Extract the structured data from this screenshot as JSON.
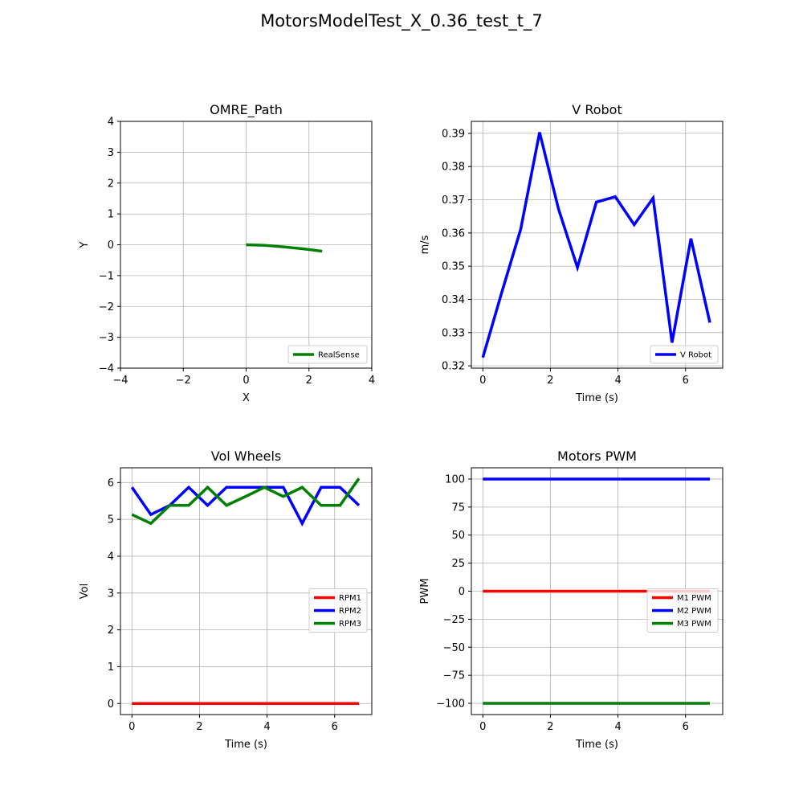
{
  "figure": {
    "suptitle": "MotorsModelTest_X_0.36_test_t_7"
  },
  "colors": {
    "red": "#ff0000",
    "blue": "#0000ff",
    "green": "#008000",
    "grid": "#b0b0b0"
  },
  "chart_data": [
    {
      "type": "line",
      "title": "OMRE_Path",
      "xlabel": "X",
      "ylabel": "Y",
      "xlim": [
        -4,
        4
      ],
      "ylim": [
        -4,
        4
      ],
      "xticks": [
        -4,
        -2,
        0,
        2,
        4
      ],
      "yticks": [
        -4,
        -3,
        -2,
        -1,
        0,
        1,
        2,
        3,
        4
      ],
      "grid": true,
      "legend": "lower-right",
      "series": [
        {
          "name": "RealSense",
          "color": "#008000",
          "x": [
            0,
            0.6,
            1.2,
            1.8,
            2.42
          ],
          "y": [
            0,
            -0.02,
            -0.07,
            -0.13,
            -0.21
          ]
        }
      ]
    },
    {
      "type": "line",
      "title": "V Robot",
      "xlabel": "Time (s)",
      "ylabel": "m/s",
      "xlim": [
        -0.34,
        7.1
      ],
      "ylim": [
        0.3193,
        0.3936
      ],
      "xticks": [
        0,
        2,
        4,
        6
      ],
      "yticks": [
        0.32,
        0.33,
        0.34,
        0.35,
        0.36,
        0.37,
        0.38,
        0.39
      ],
      "grid": true,
      "legend": "lower-right",
      "series": [
        {
          "name": "V Robot",
          "color": "#0000ff",
          "x": [
            0,
            0.56,
            1.12,
            1.68,
            2.24,
            2.8,
            3.36,
            3.92,
            4.48,
            5.04,
            5.6,
            6.16,
            6.72
          ],
          "y": [
            0.3225,
            0.3421,
            0.3611,
            0.3903,
            0.3672,
            0.3496,
            0.3693,
            0.3709,
            0.3625,
            0.3705,
            0.327,
            0.3583,
            0.333
          ]
        }
      ]
    },
    {
      "type": "line",
      "title": "Vol Wheels",
      "xlabel": "Time (s)",
      "ylabel": "Vol",
      "xlim": [
        -0.34,
        7.1
      ],
      "ylim": [
        -0.3,
        6.4
      ],
      "xticks": [
        0,
        2,
        4,
        6
      ],
      "yticks": [
        0,
        1,
        2,
        3,
        4,
        5,
        6
      ],
      "grid": true,
      "legend": "center-right",
      "series": [
        {
          "name": "RPM1",
          "color": "#ff0000",
          "x": [
            0,
            6.72
          ],
          "y": [
            0,
            0
          ]
        },
        {
          "name": "RPM2",
          "color": "#0000ff",
          "x": [
            0,
            0.56,
            1.12,
            1.68,
            2.24,
            2.8,
            3.36,
            3.92,
            4.48,
            5.04,
            5.6,
            6.16,
            6.72
          ],
          "y": [
            5.87,
            5.13,
            5.38,
            5.87,
            5.38,
            5.87,
            5.87,
            5.87,
            5.87,
            4.89,
            5.87,
            5.87,
            5.38
          ]
        },
        {
          "name": "RPM3",
          "color": "#008000",
          "x": [
            0,
            0.56,
            1.12,
            1.68,
            2.24,
            2.8,
            3.36,
            3.92,
            4.48,
            5.04,
            5.6,
            6.16,
            6.72
          ],
          "y": [
            5.13,
            4.89,
            5.38,
            5.38,
            5.87,
            5.38,
            5.62,
            5.87,
            5.62,
            5.87,
            5.38,
            5.38,
            6.11
          ]
        }
      ]
    },
    {
      "type": "line",
      "title": "Motors PWM",
      "xlabel": "Time (s)",
      "ylabel": "PWM",
      "xlim": [
        -0.34,
        7.1
      ],
      "ylim": [
        -110,
        110
      ],
      "xticks": [
        0,
        2,
        4,
        6
      ],
      "yticks": [
        -100,
        -75,
        -50,
        -25,
        0,
        25,
        50,
        75,
        100
      ],
      "grid": true,
      "legend": "center-right",
      "series": [
        {
          "name": "M1 PWM",
          "color": "#ff0000",
          "x": [
            0,
            6.72
          ],
          "y": [
            0,
            0
          ]
        },
        {
          "name": "M2 PWM",
          "color": "#0000ff",
          "x": [
            0,
            6.72
          ],
          "y": [
            100,
            100
          ]
        },
        {
          "name": "M3 PWM",
          "color": "#008000",
          "x": [
            0,
            6.72
          ],
          "y": [
            -100,
            -100
          ]
        }
      ]
    }
  ]
}
